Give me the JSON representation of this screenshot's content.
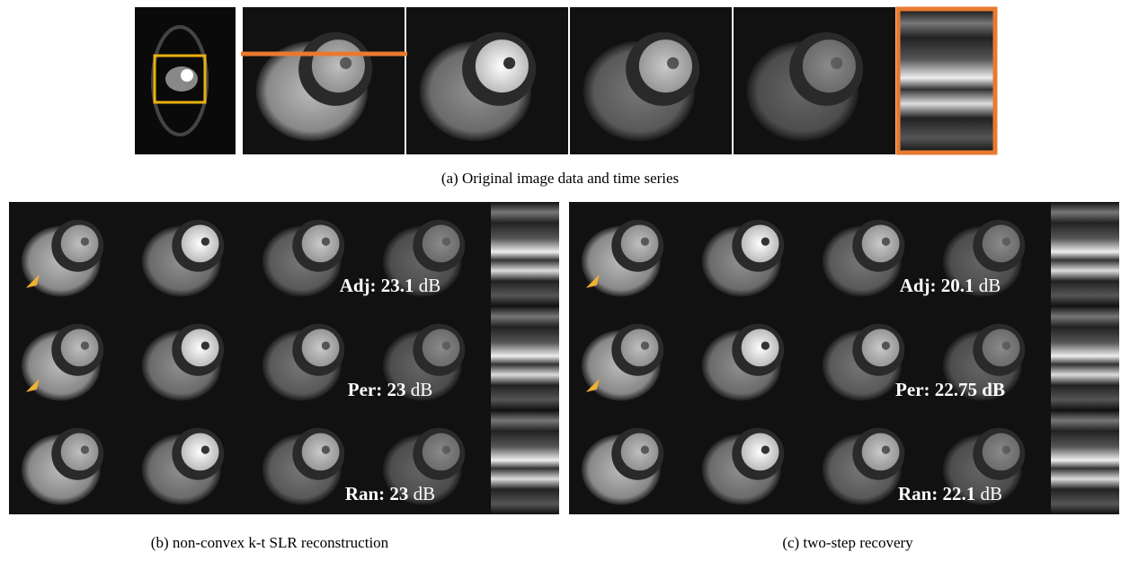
{
  "caption_a": "(a)  Original image data and time series",
  "panels": [
    {
      "caption": "(b)  non-convex k-t SLR reconstruction",
      "rows": [
        {
          "bold": "Adj: 23.1",
          "normal": "dB"
        },
        {
          "bold": "Per: 23",
          "normal": "dB"
        },
        {
          "bold": "Ran: 23",
          "normal": "dB"
        }
      ]
    },
    {
      "caption": "(c)  two-step recovery",
      "rows": [
        {
          "bold": "Adj: 20.1",
          "normal": "dB"
        },
        {
          "bold": "Per: 22.75 dB"
        },
        {
          "bold": "Ran: 22.1",
          "normal": "dB"
        }
      ]
    }
  ]
}
